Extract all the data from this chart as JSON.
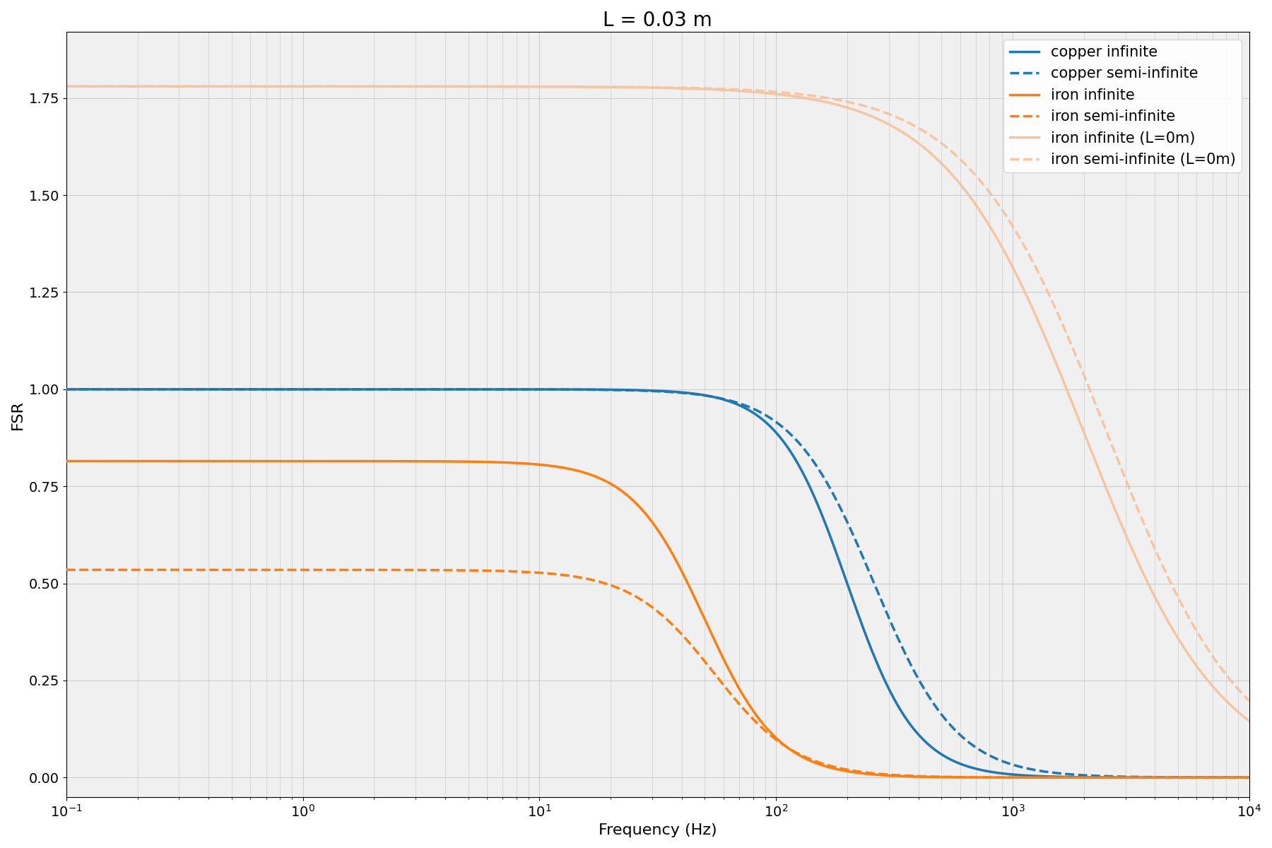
{
  "title": "L = 0.03 m",
  "xlabel": "Frequency (Hz)",
  "ylabel": "FSR",
  "freq_min": 0.1,
  "freq_max": 10000,
  "n_points": 2000,
  "copper_color": "#1f77b4",
  "iron_color": "#ff7f0e",
  "iron_L0_color": "#f5c6a0",
  "lw": 2.5,
  "lw_bg": 2.5,
  "legend_loc": "upper right",
  "grid_color": "#cccccc",
  "bg_color": "#ffffff",
  "plot_bg_color": "#f0f0f0",
  "copper_inf_dc": 1.0,
  "copper_inf_fc": 200.0,
  "copper_inf_n": 3.0,
  "copper_semi_fc": 260.0,
  "copper_semi_n": 2.5,
  "iron_inf_dc": 0.815,
  "iron_inf_fc": 50.0,
  "iron_inf_n": 2.8,
  "iron_semi_dc": 0.535,
  "iron_semi_fc": 55.0,
  "iron_semi_n": 2.5,
  "iron_L0_inf_dc": 1.78,
  "iron_L0_inf_fc": 2000.0,
  "iron_L0_inf_n": 1.5,
  "iron_L0_semi_dc": 1.78,
  "iron_L0_semi_fc": 2500.0,
  "iron_L0_semi_n": 1.5,
  "title_fontsize": 20,
  "label_fontsize": 16,
  "tick_fontsize": 14,
  "legend_fontsize": 15,
  "yticks": [
    0.0,
    0.25,
    0.5,
    0.75,
    1.0,
    1.25,
    1.5,
    1.75
  ],
  "ylim": [
    -0.05,
    1.92
  ]
}
